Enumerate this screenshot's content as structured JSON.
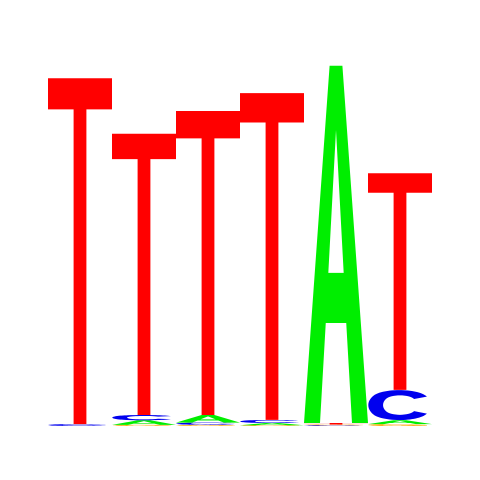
{
  "colors": {
    "A": "#00ee00",
    "C": "#0000ee",
    "G": "#ffa500",
    "T": "#ff0000",
    "background": "#ffffff"
  },
  "positions": [
    {
      "letters": [
        {
          "base": "C",
          "height": 0.005
        },
        {
          "base": "T",
          "height": 0.91
        }
      ]
    },
    {
      "letters": [
        {
          "base": "G",
          "height": 0.003
        },
        {
          "base": "A",
          "height": 0.012
        },
        {
          "base": "C",
          "height": 0.014
        },
        {
          "base": "T",
          "height": 0.74
        }
      ]
    },
    {
      "letters": [
        {
          "base": "G",
          "height": 0.003
        },
        {
          "base": "C",
          "height": 0.006
        },
        {
          "base": "A",
          "height": 0.02
        },
        {
          "base": "T",
          "height": 0.8
        }
      ]
    },
    {
      "letters": [
        {
          "base": "G",
          "height": 0.002
        },
        {
          "base": "A",
          "height": 0.006
        },
        {
          "base": "C",
          "height": 0.008
        },
        {
          "base": "T",
          "height": 0.86
        }
      ]
    },
    {
      "letters": [
        {
          "base": "C",
          "height": 0.002
        },
        {
          "base": "G",
          "height": 0.002
        },
        {
          "base": "T",
          "height": 0.004
        },
        {
          "base": "A",
          "height": 0.94
        }
      ]
    },
    {
      "letters": [
        {
          "base": "G",
          "height": 0.005
        },
        {
          "base": "A",
          "height": 0.01
        },
        {
          "base": "C",
          "height": 0.08
        },
        {
          "base": "T",
          "height": 0.57
        }
      ]
    }
  ]
}
